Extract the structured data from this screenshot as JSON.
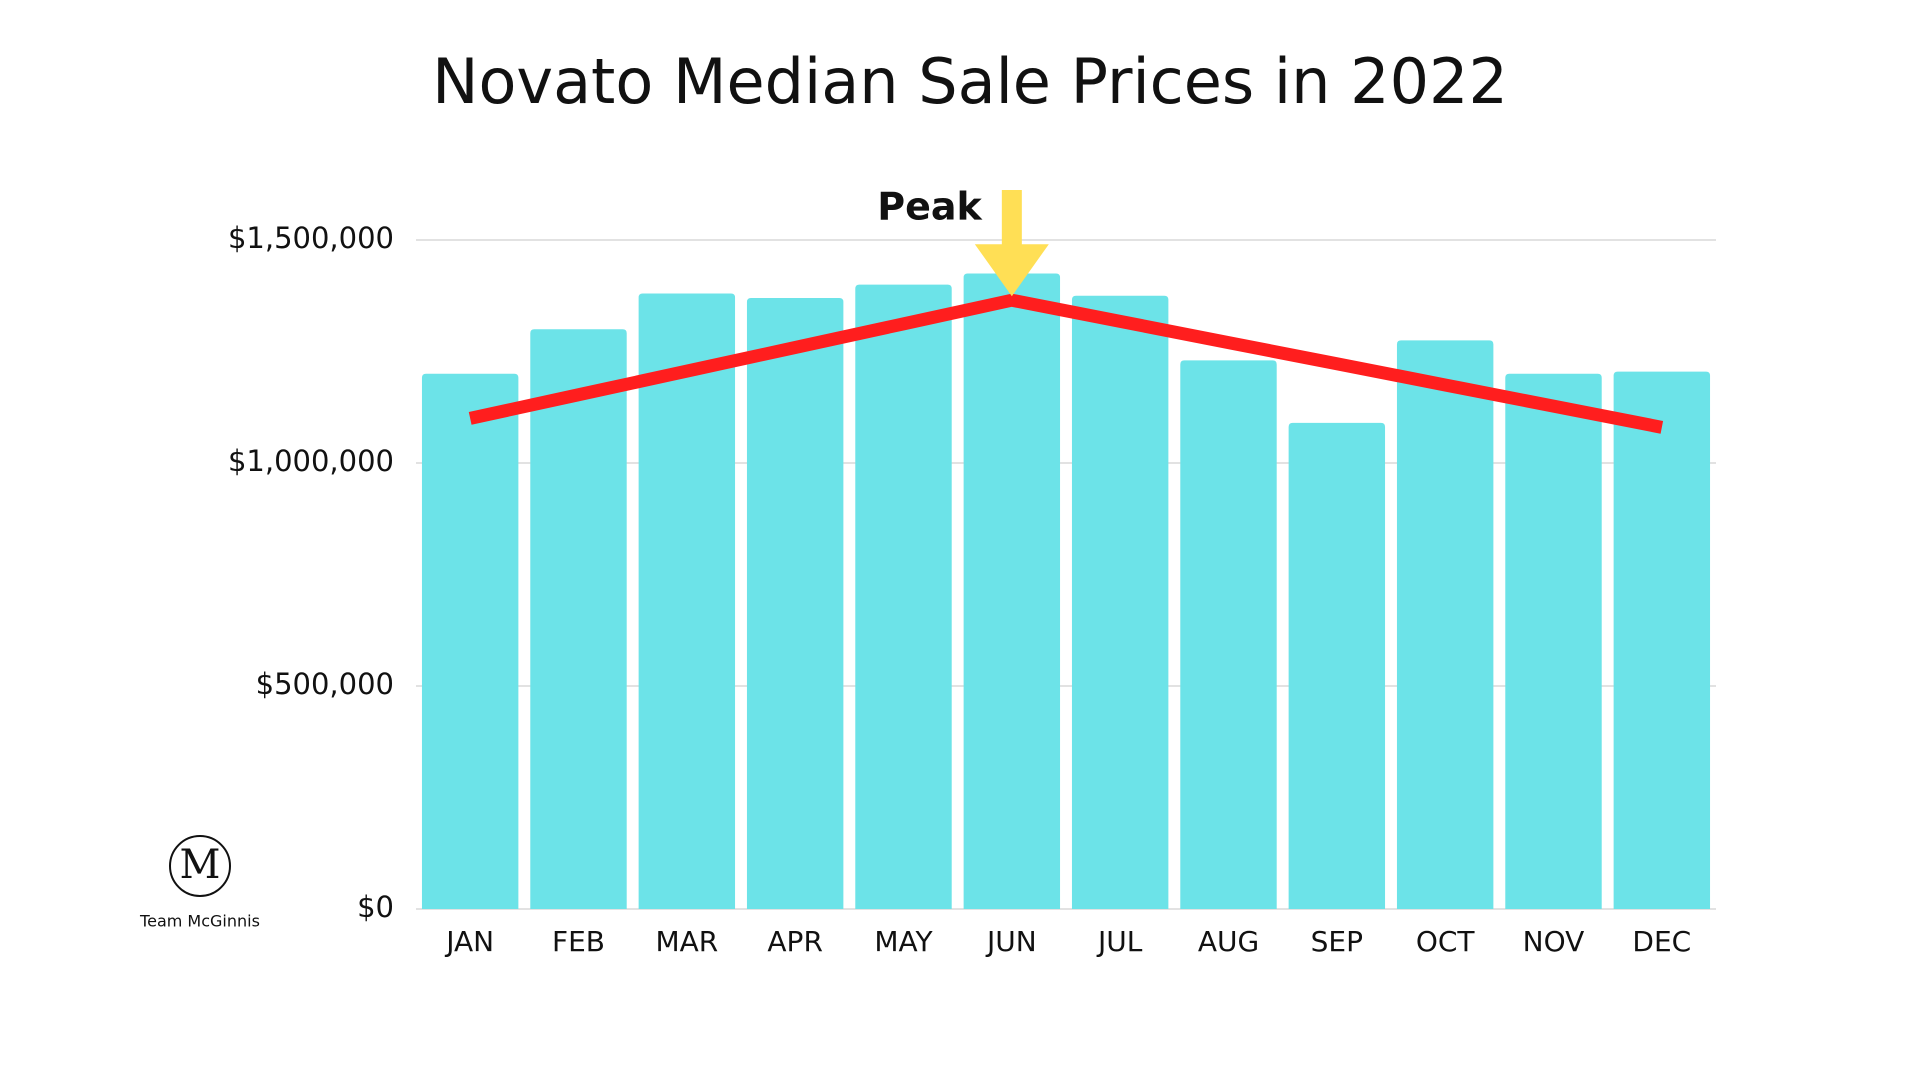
{
  "chart_data": {
    "type": "bar",
    "title": "Novato Median Sale Prices in 2022",
    "categories": [
      "JAN",
      "FEB",
      "MAR",
      "APR",
      "MAY",
      "JUN",
      "JUL",
      "AUG",
      "SEP",
      "OCT",
      "NOV",
      "DEC"
    ],
    "values": [
      1200000,
      1300000,
      1380000,
      1370000,
      1400000,
      1425000,
      1375000,
      1230000,
      1090000,
      1275000,
      1200000,
      1205000
    ],
    "color": "#6ce3e8",
    "line": {
      "color": "#ff1e1e",
      "values": [
        1100000,
        1153000,
        1206000,
        1259000,
        1312000,
        1365000,
        1317500,
        1270000,
        1222500,
        1175000,
        1127500,
        1080000
      ]
    },
    "annotation": "Peak",
    "ylim": [
      0,
      1500000
    ],
    "yticks": [
      {
        "value": 0,
        "label": "$0"
      },
      {
        "value": 500000,
        "label": "$500,000"
      },
      {
        "value": 1000000,
        "label": "$1,000,000"
      },
      {
        "value": 1500000,
        "label": "$1,500,000"
      }
    ],
    "grid": true
  },
  "logo": {
    "letter": "M",
    "text": "Team McGinnis"
  }
}
